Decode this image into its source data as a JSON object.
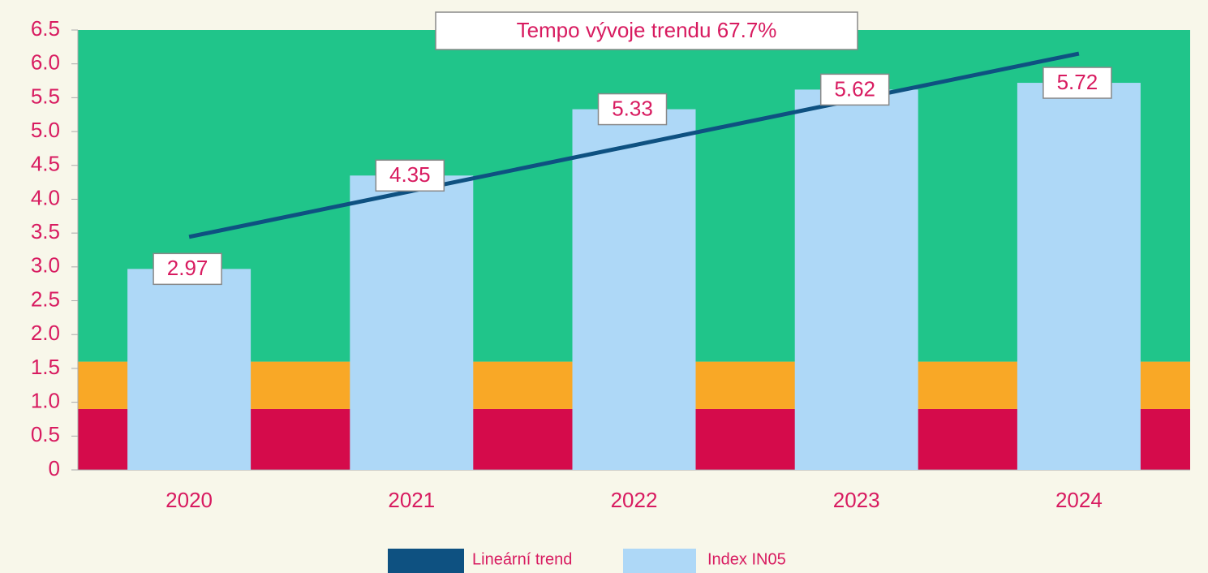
{
  "chart_data": {
    "type": "bar",
    "annotation": "Tempo vývoje trendu 67.7%",
    "categories": [
      "2020",
      "2021",
      "2022",
      "2023",
      "2024"
    ],
    "series": [
      {
        "name": "Lineární trend",
        "type": "line",
        "color": "#0e5181",
        "values": [
          3.444,
          4.121,
          4.798,
          5.475,
          6.152
        ]
      },
      {
        "name": "Index IN05",
        "type": "bar",
        "color": "#aed8f7",
        "values": [
          2.97,
          4.35,
          5.33,
          5.62,
          5.72
        ]
      }
    ],
    "bands": [
      {
        "from": 0,
        "to": 0.9,
        "color": "#d50b4b"
      },
      {
        "from": 0.9,
        "to": 1.6,
        "color": "#f9a826"
      },
      {
        "from": 1.6,
        "to": 6.5,
        "color": "#20c58a"
      }
    ],
    "ylim": [
      0,
      6.5
    ],
    "yticks": [
      0,
      0.5,
      {
        "value": 1,
        "label": "1.0"
      },
      1.5,
      {
        "value": 2,
        "label": "2.0"
      },
      2.5,
      {
        "value": 3,
        "label": "3.0"
      },
      3.5,
      {
        "value": 4,
        "label": "4.0"
      },
      4.5,
      {
        "value": 5,
        "label": "5.0"
      },
      5.5,
      {
        "value": 6,
        "label": "6.0"
      },
      6.5
    ],
    "legend": "bottom"
  }
}
